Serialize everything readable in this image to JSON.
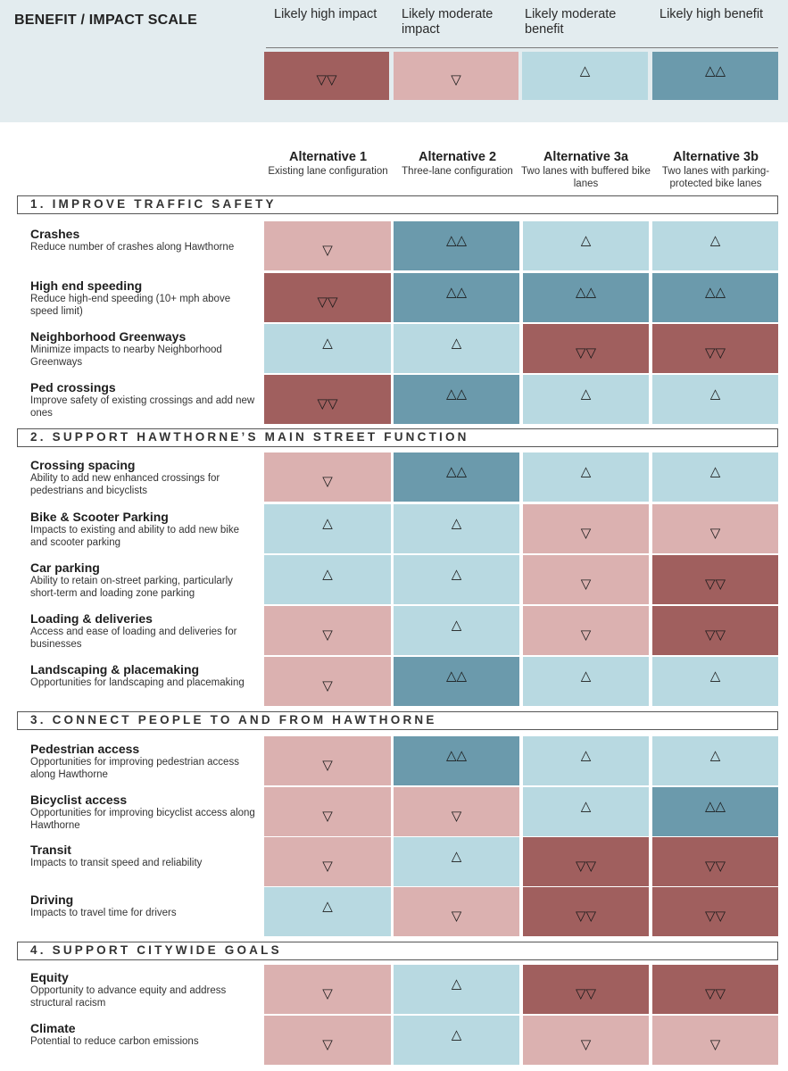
{
  "colors": {
    "legend_bg": "#e3ecef",
    "likely_high_impact": "#a05f5e",
    "likely_moderate_impact": "#dbb1b0",
    "likely_moderate_benefit": "#b8d9e1",
    "likely_high_benefit": "#6b9aac"
  },
  "legend": {
    "title": "BENEFIT / IMPACT SCALE",
    "items": [
      {
        "label": "Likely high impact",
        "symbol": "▽▽",
        "color": "#a05f5e"
      },
      {
        "label": "Likely moderate impact",
        "symbol": "▽",
        "color": "#dbb1b0"
      },
      {
        "label": "Likely moderate benefit",
        "symbol": "△",
        "color": "#b8d9e1"
      },
      {
        "label": "Likely high benefit",
        "symbol": "△△",
        "color": "#6b9aac"
      }
    ]
  },
  "symbols": {
    "hi": "▽▽",
    "mi": "▽",
    "mb": "△",
    "hb": "△△"
  },
  "alternatives": [
    {
      "name": "Alternative 1",
      "desc": "Existing lane configuration"
    },
    {
      "name": "Alternative 2",
      "desc": "Three-lane configuration"
    },
    {
      "name": "Alternative 3a",
      "desc": "Two lanes with buffered bike lanes"
    },
    {
      "name": "Alternative 3b",
      "desc": "Two lanes with parking-protected bike lanes"
    }
  ],
  "sections": [
    {
      "title": "1. IMPROVE TRAFFIC SAFETY",
      "rows": [
        {
          "title": "Crashes",
          "desc": "Reduce number of crashes along Hawthorne",
          "ratings": [
            "mi",
            "hb",
            "mb",
            "mb"
          ]
        },
        {
          "title": "High end speeding",
          "desc": "Reduce high-end speeding (10+ mph above speed limit)",
          "ratings": [
            "hi",
            "hb",
            "hb",
            "hb"
          ]
        },
        {
          "title": "Neighborhood Greenways",
          "desc": "Minimize impacts to nearby Neighborhood Greenways",
          "ratings": [
            "mb",
            "mb",
            "hi",
            "hi"
          ]
        },
        {
          "title": "Ped crossings",
          "desc": "Improve safety of existing crossings and add new ones",
          "ratings": [
            "hi",
            "hb",
            "mb",
            "mb"
          ]
        }
      ]
    },
    {
      "title": "2. SUPPORT HAWTHORNE’S MAIN STREET FUNCTION",
      "rows": [
        {
          "title": "Crossing spacing",
          "desc": "Ability to add new enhanced crossings for pedestrians and bicyclists",
          "ratings": [
            "mi",
            "hb",
            "mb",
            "mb"
          ]
        },
        {
          "title": "Bike & Scooter Parking",
          "desc": "Impacts to existing and ability to add new bike and scooter parking",
          "ratings": [
            "mb",
            "mb",
            "mi",
            "mi"
          ]
        },
        {
          "title": "Car parking",
          "desc": "Ability to retain on-street parking, particularly short-term and loading zone parking",
          "ratings": [
            "mb",
            "mb",
            "mi",
            "hi"
          ]
        },
        {
          "title": "Loading & deliveries",
          "desc": "Access and ease of loading and deliveries for businesses",
          "ratings": [
            "mi",
            "mb",
            "mi",
            "hi"
          ]
        },
        {
          "title": "Landscaping & placemaking",
          "desc": "Opportunities for landscaping and placemaking",
          "ratings": [
            "mi",
            "hb",
            "mb",
            "mb"
          ]
        }
      ]
    },
    {
      "title": "3. CONNECT PEOPLE TO AND FROM HAWTHORNE",
      "rows": [
        {
          "title": "Pedestrian access",
          "desc": "Opportunities for improving pedestrian access along Hawthorne",
          "ratings": [
            "mi",
            "hb",
            "mb",
            "mb"
          ]
        },
        {
          "title": "Bicyclist access",
          "desc": "Opportunities for improving bicyclist access along Hawthorne",
          "ratings": [
            "mi",
            "mi",
            "mb",
            "hb"
          ]
        },
        {
          "title": "Transit",
          "desc": "Impacts to transit speed and reliability",
          "ratings": [
            "mi",
            "mb",
            "hi",
            "hi"
          ]
        },
        {
          "title": "Driving",
          "desc": "Impacts to travel time for drivers",
          "ratings": [
            "mb",
            "mi",
            "hi",
            "hi"
          ]
        }
      ]
    },
    {
      "title": "4. SUPPORT CITYWIDE GOALS",
      "rows": [
        {
          "title": "Equity",
          "desc": "Opportunity to advance equity and address structural racism",
          "ratings": [
            "mi",
            "mb",
            "hi",
            "hi"
          ]
        },
        {
          "title": "Climate",
          "desc": "Potential to reduce carbon emissions",
          "ratings": [
            "mi",
            "mb",
            "mi",
            "mi"
          ]
        }
      ]
    }
  ]
}
